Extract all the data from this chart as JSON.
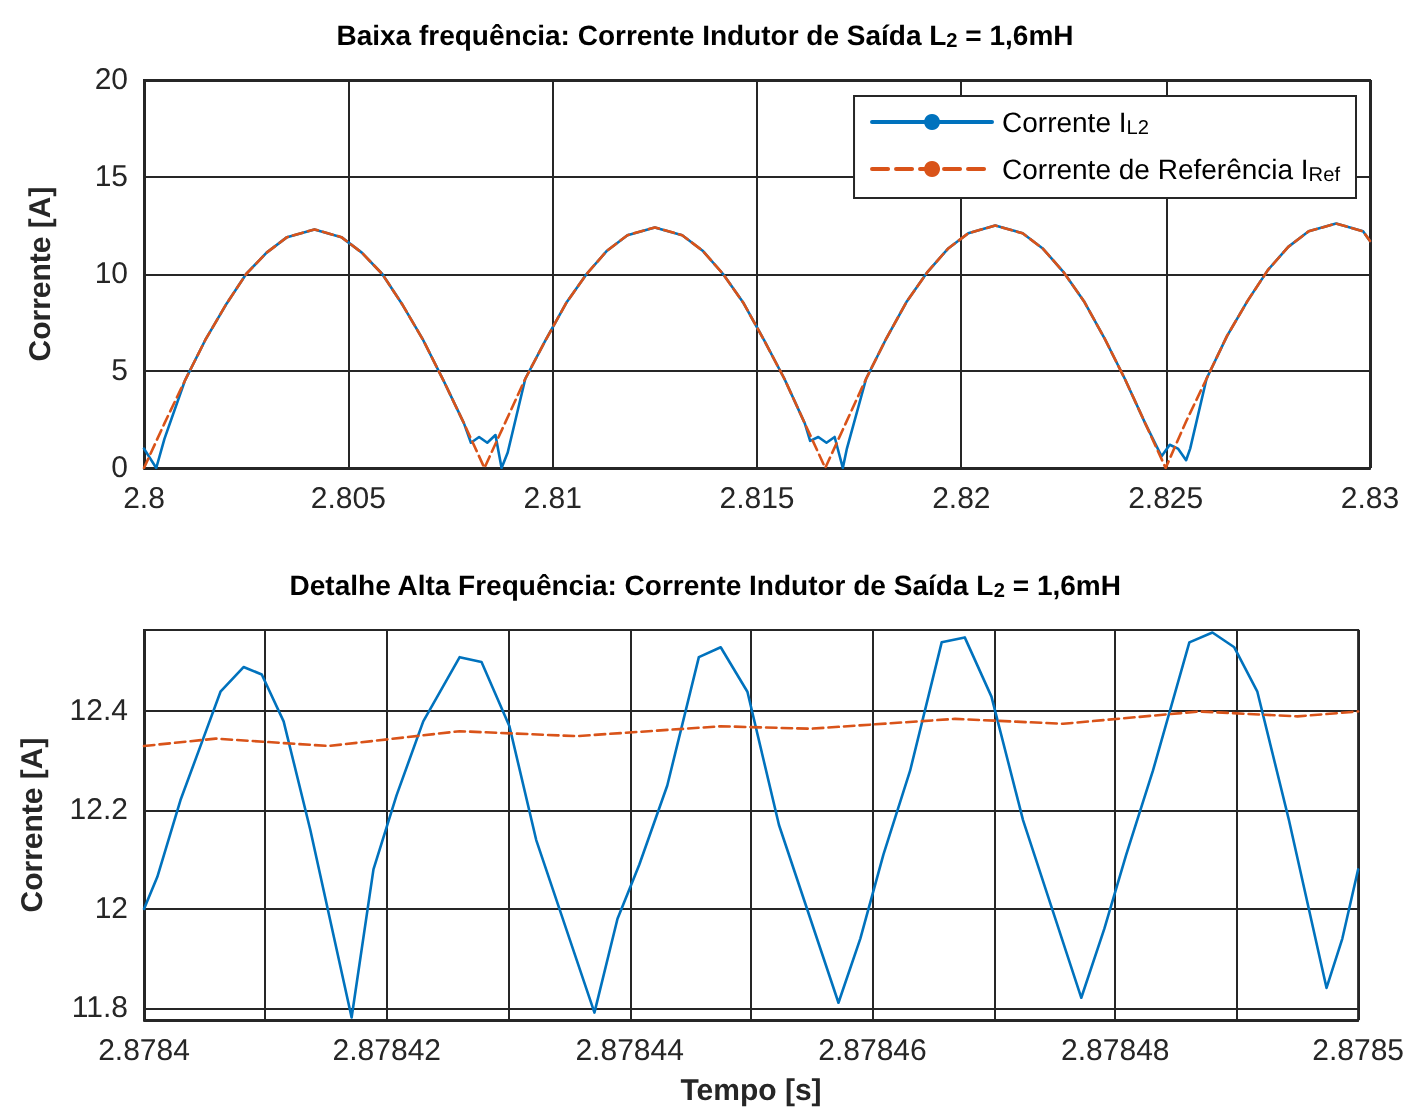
{
  "chart_data": [
    {
      "type": "line",
      "title": "Baixa frequência: Corrente Indutor de Saída L$_{2}$ = 1,6mH",
      "ylabel": "Corrente [A]",
      "xlim": [
        2.8,
        2.83
      ],
      "xticks": [
        2.8,
        2.805,
        2.81,
        2.815,
        2.82,
        2.825,
        2.83
      ],
      "ylim": [
        0,
        20
      ],
      "yticks": [
        0,
        5,
        10,
        15,
        20
      ],
      "grid": true,
      "legend": "top right",
      "series": [
        {
          "name": "Corrente I$_{L2}$",
          "color": "#0072bd",
          "line_style": "solid",
          "x": [
            2.8,
            2.8003,
            2.8005,
            2.801,
            2.8015,
            2.802,
            2.8025,
            2.803,
            2.8035,
            2.80417,
            2.80483,
            2.80533,
            2.80583,
            2.80633,
            2.80683,
            2.80733,
            2.80783,
            2.808,
            2.8082,
            2.8084,
            2.8086,
            2.80875,
            2.8089,
            2.80933,
            2.80983,
            2.81033,
            2.81083,
            2.81133,
            2.81183,
            2.8125,
            2.81317,
            2.81367,
            2.81417,
            2.81467,
            2.81517,
            2.81567,
            2.81617,
            2.8163,
            2.8165,
            2.8167,
            2.8169,
            2.8171,
            2.8172,
            2.81767,
            2.81817,
            2.81867,
            2.81917,
            2.81967,
            2.82017,
            2.82083,
            2.8215,
            2.822,
            2.8225,
            2.823,
            2.8235,
            2.824,
            2.8245,
            2.8249,
            2.8251,
            2.8253,
            2.8255,
            2.8256,
            2.826,
            2.8265,
            2.827,
            2.8275,
            2.828,
            2.8285,
            2.82917,
            2.82983,
            2.83
          ],
          "values": [
            1.0,
            0,
            1.5,
            4.5,
            6.6,
            8.4,
            10.0,
            11.1,
            11.9,
            12.3,
            11.9,
            11.1,
            10.0,
            8.4,
            6.6,
            4.5,
            2.3,
            1.3,
            1.6,
            1.3,
            1.7,
            0,
            0.8,
            4.6,
            6.6,
            8.5,
            10.0,
            11.2,
            12.0,
            12.4,
            12.0,
            11.2,
            10.0,
            8.5,
            6.6,
            4.6,
            2.3,
            1.4,
            1.6,
            1.3,
            1.6,
            0,
            1.0,
            4.6,
            6.7,
            8.6,
            10.1,
            11.3,
            12.1,
            12.5,
            12.1,
            11.3,
            10.1,
            8.6,
            6.7,
            4.6,
            2.3,
            0.6,
            1.2,
            1.0,
            0.4,
            1.0,
            4.6,
            6.8,
            8.6,
            10.2,
            11.4,
            12.2,
            12.6,
            12.2,
            11.7
          ]
        },
        {
          "name": "Corrente de Referência I$_{Ref}$",
          "color": "#d95319",
          "line_style": "dashed",
          "x": [
            2.8,
            2.8005,
            2.801,
            2.8015,
            2.802,
            2.8025,
            2.803,
            2.8035,
            2.80417,
            2.80483,
            2.80533,
            2.80583,
            2.80633,
            2.80683,
            2.80733,
            2.80783,
            2.80833,
            2.80883,
            2.80933,
            2.80983,
            2.81033,
            2.81083,
            2.81133,
            2.81183,
            2.8125,
            2.81317,
            2.81367,
            2.81417,
            2.81467,
            2.81517,
            2.81567,
            2.81617,
            2.81667,
            2.81717,
            2.81767,
            2.81817,
            2.81867,
            2.81917,
            2.81967,
            2.82017,
            2.82083,
            2.8215,
            2.822,
            2.8225,
            2.823,
            2.8235,
            2.824,
            2.8245,
            2.825,
            2.8255,
            2.826,
            2.8265,
            2.827,
            2.8275,
            2.828,
            2.8285,
            2.82917,
            2.82983,
            2.83
          ],
          "values": [
            0,
            2.3,
            4.5,
            6.6,
            8.4,
            10.0,
            11.1,
            11.9,
            12.3,
            11.9,
            11.1,
            10.0,
            8.4,
            6.6,
            4.5,
            2.3,
            0,
            2.3,
            4.6,
            6.6,
            8.5,
            10.0,
            11.2,
            12.0,
            12.4,
            12.0,
            11.2,
            10.0,
            8.5,
            6.6,
            4.6,
            2.3,
            0,
            2.3,
            4.6,
            6.7,
            8.6,
            10.1,
            11.3,
            12.1,
            12.5,
            12.1,
            11.3,
            10.1,
            8.6,
            6.7,
            4.6,
            2.3,
            0,
            2.4,
            4.6,
            6.8,
            8.6,
            10.2,
            11.4,
            12.2,
            12.6,
            12.2,
            11.7
          ]
        }
      ]
    },
    {
      "type": "line",
      "title": "Detalhe Alta Frequência: Corrente Indutor de Saída L$_{2}$ = 1,6mH",
      "xlabel": "Tempo [s]",
      "ylabel": "Corrente [A]",
      "xlim": [
        2.8784,
        2.8785
      ],
      "xticks": [
        2.8784,
        {
          "value": 2.87841,
          "label": null
        },
        2.87842,
        {
          "value": 2.87843,
          "label": null
        },
        2.87844,
        {
          "value": 2.87845,
          "label": null
        },
        2.87846,
        {
          "value": 2.87847,
          "label": null
        },
        2.87848,
        {
          "value": 2.87849,
          "label": null
        },
        2.8785
      ],
      "ylim": [
        11.775,
        12.565
      ],
      "yticks": [
        11.8,
        12,
        12.2,
        12.4
      ],
      "grid": true,
      "series": [
        {
          "color": "#0072bd",
          "line_style": "solid",
          "x": [
            2.8784,
            2.8784011,
            2.878403,
            2.8784048,
            2.8784063,
            2.8784082,
            2.8784097,
            2.8784115,
            2.8784137,
            2.8784171,
            2.8784189,
            2.8784208,
            2.878423,
            2.878426,
            2.8784278,
            2.8784301,
            2.8784323,
            2.8784371,
            2.878439,
            2.8784408,
            2.8784431,
            2.8784457,
            2.8784475,
            2.8784497,
            2.8784523,
            2.8784572,
            2.878459,
            2.8784609,
            2.8784631,
            2.8784657,
            2.8784676,
            2.8784698,
            2.8784724,
            2.8784772,
            2.8784791,
            2.8784809,
            2.8784831,
            2.8784861,
            2.878488,
            2.8784898,
            2.8784917,
            2.8784943,
            2.8784974,
            2.8784987,
            2.8785
          ],
          "values": [
            12.0,
            12.065,
            12.22,
            12.34,
            12.44,
            12.49,
            12.475,
            12.38,
            12.16,
            11.78,
            12.08,
            12.23,
            12.38,
            12.51,
            12.5,
            12.37,
            12.14,
            11.79,
            11.98,
            12.09,
            12.25,
            12.51,
            12.53,
            12.44,
            12.17,
            11.81,
            11.94,
            12.11,
            12.28,
            12.54,
            12.55,
            12.43,
            12.18,
            11.82,
            11.96,
            12.11,
            12.28,
            12.54,
            12.56,
            12.53,
            12.44,
            12.18,
            11.84,
            11.94,
            12.08
          ]
        },
        {
          "color": "#d95319",
          "line_style": "dashed",
          "x": [
            2.8784,
            2.8784059,
            2.8784152,
            2.878426,
            2.8784356,
            2.8784475,
            2.8784549,
            2.8784668,
            2.8784757,
            2.8784869,
            2.878495,
            2.8785
          ],
          "values": [
            12.33,
            12.345,
            12.33,
            12.36,
            12.35,
            12.37,
            12.365,
            12.385,
            12.375,
            12.4,
            12.39,
            12.4
          ]
        }
      ]
    }
  ]
}
